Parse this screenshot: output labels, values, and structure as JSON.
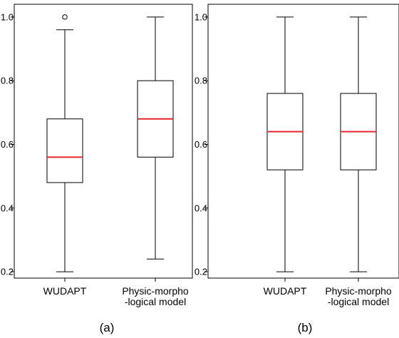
{
  "chart_data": [
    {
      "type": "box",
      "panel_label": "(a)",
      "ylim": [
        0.18,
        1.04
      ],
      "yticks": [
        "0.2",
        "0.4",
        "0.6",
        "0.8",
        "1.0"
      ],
      "categories": [
        {
          "line1": "WUDAPT",
          "line2": ""
        },
        {
          "line1": "Physic-morpho",
          "line2": "-logical model"
        }
      ],
      "boxes": [
        {
          "whisker_low": 0.2,
          "q1": 0.48,
          "median": 0.56,
          "q3": 0.68,
          "whisker_high": 0.96,
          "outliers": [
            1.0
          ]
        },
        {
          "whisker_low": 0.24,
          "q1": 0.56,
          "median": 0.68,
          "q3": 0.8,
          "whisker_high": 1.0,
          "outliers": []
        }
      ],
      "colors": {
        "median": "#e8262b",
        "box": "#000000"
      }
    },
    {
      "type": "box",
      "panel_label": "(b)",
      "ylim": [
        0.18,
        1.04
      ],
      "yticks": [
        "0.2",
        "0.4",
        "0.6",
        "0.8",
        "1.0"
      ],
      "categories": [
        {
          "line1": "WUDAPT",
          "line2": ""
        },
        {
          "line1": "Physic-morpho",
          "line2": "-logical model"
        }
      ],
      "boxes": [
        {
          "whisker_low": 0.2,
          "q1": 0.52,
          "median": 0.64,
          "q3": 0.76,
          "whisker_high": 1.0,
          "outliers": []
        },
        {
          "whisker_low": 0.2,
          "q1": 0.52,
          "median": 0.64,
          "q3": 0.76,
          "whisker_high": 1.0,
          "outliers": []
        }
      ],
      "colors": {
        "median": "#e8262b",
        "box": "#000000"
      }
    }
  ]
}
